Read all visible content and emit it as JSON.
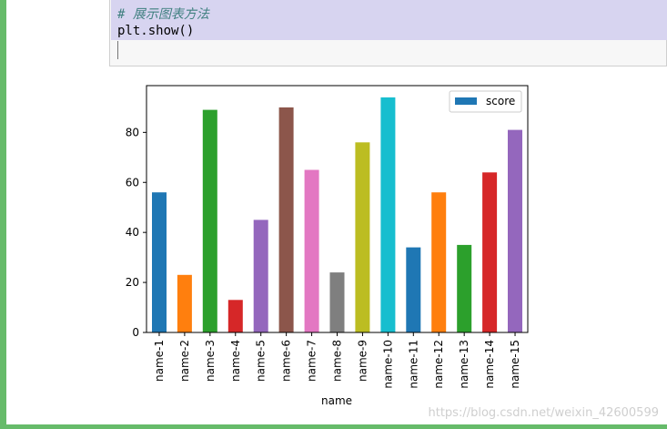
{
  "notebook": {
    "code_comment": "# 展示图表方法",
    "code_statement": "plt.show()"
  },
  "watermark": "https://blog.csdn.net/weixin_42600599",
  "colors": {
    "accent_green": "#66bb6a",
    "selection": "#d7d4f0"
  },
  "chart_data": {
    "type": "bar",
    "title": "",
    "xlabel": "name",
    "ylabel": "",
    "categories": [
      "name-1",
      "name-2",
      "name-3",
      "name-4",
      "name-5",
      "name-6",
      "name-7",
      "name-8",
      "name-9",
      "name-10",
      "name-11",
      "name-12",
      "name-13",
      "name-14",
      "name-15"
    ],
    "series": [
      {
        "name": "score",
        "values": [
          56,
          23,
          89,
          13,
          45,
          90,
          65,
          24,
          76,
          94,
          34,
          56,
          35,
          64,
          81
        ]
      }
    ],
    "bar_colors": [
      "#1f77b4",
      "#ff7f0e",
      "#2ca02c",
      "#d62728",
      "#9467bd",
      "#8c564b",
      "#e377c2",
      "#7f7f7f",
      "#bcbd22",
      "#17becf",
      "#1f77b4",
      "#ff7f0e",
      "#2ca02c",
      "#d62728",
      "#9467bd"
    ],
    "yticks": [
      0,
      20,
      40,
      60,
      80
    ],
    "ylim": [
      0,
      98.7
    ],
    "legend_position": "top-right",
    "grid": false
  }
}
